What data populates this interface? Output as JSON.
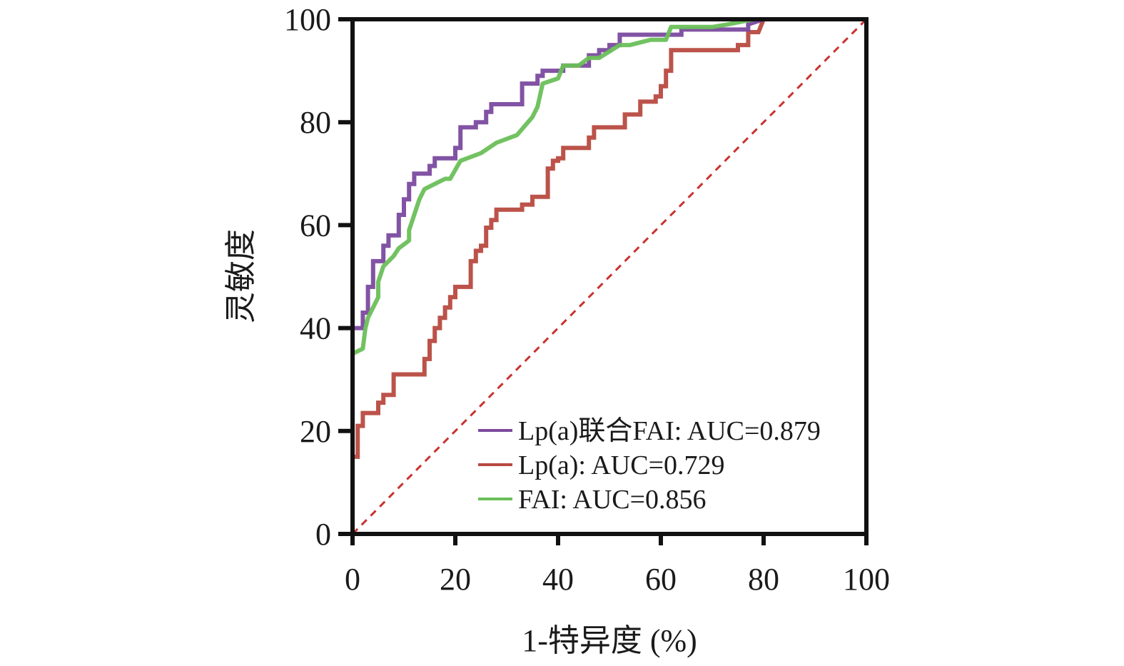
{
  "chart_data": {
    "type": "line",
    "title": "",
    "xlabel": "1-特异度 (%)",
    "ylabel": "灵敏度",
    "xlim": [
      0,
      100
    ],
    "ylim": [
      0,
      100
    ],
    "xticks": [
      0,
      20,
      40,
      60,
      80,
      100
    ],
    "yticks": [
      0,
      20,
      40,
      60,
      80,
      100
    ],
    "grid": false,
    "legend_position": "bottom-right",
    "series": [
      {
        "name": "Lp(a)联合FAI: AUC=0.879",
        "color": "#7b4a9f",
        "step": true,
        "points": [
          [
            0,
            35
          ],
          [
            0,
            40
          ],
          [
            2,
            40
          ],
          [
            2,
            43
          ],
          [
            3,
            43
          ],
          [
            3,
            48
          ],
          [
            4,
            48
          ],
          [
            4,
            53
          ],
          [
            6,
            53
          ],
          [
            6,
            56
          ],
          [
            7,
            56
          ],
          [
            7,
            58
          ],
          [
            9,
            58
          ],
          [
            9,
            62
          ],
          [
            10,
            62
          ],
          [
            10,
            65
          ],
          [
            11,
            65
          ],
          [
            11,
            68
          ],
          [
            12,
            68
          ],
          [
            12,
            70
          ],
          [
            15,
            70
          ],
          [
            15,
            71.5
          ],
          [
            16,
            71.5
          ],
          [
            16,
            73
          ],
          [
            20,
            73
          ],
          [
            20,
            75
          ],
          [
            21,
            75
          ],
          [
            21,
            79
          ],
          [
            24,
            79
          ],
          [
            24,
            80
          ],
          [
            26,
            80
          ],
          [
            26,
            82
          ],
          [
            27,
            82
          ],
          [
            27,
            83.5
          ],
          [
            33,
            83.5
          ],
          [
            33,
            87.5
          ],
          [
            36,
            87.5
          ],
          [
            36,
            89
          ],
          [
            37,
            89
          ],
          [
            37,
            90
          ],
          [
            41,
            90
          ],
          [
            41,
            91
          ],
          [
            46,
            91
          ],
          [
            46,
            93
          ],
          [
            48,
            93
          ],
          [
            48,
            94
          ],
          [
            50,
            94
          ],
          [
            50,
            95
          ],
          [
            52,
            95
          ],
          [
            52,
            97
          ],
          [
            64,
            97
          ],
          [
            64,
            98
          ],
          [
            77,
            98
          ],
          [
            77,
            99
          ],
          [
            80,
            100
          ],
          [
            100,
            100
          ]
        ]
      },
      {
        "name": "Lp(a): AUC=0.729",
        "color": "#b84a40",
        "step": true,
        "points": [
          [
            0,
            0
          ],
          [
            0,
            15
          ],
          [
            1,
            15
          ],
          [
            1,
            21
          ],
          [
            2,
            21
          ],
          [
            2,
            23.5
          ],
          [
            5,
            23.5
          ],
          [
            5,
            25.5
          ],
          [
            6,
            25.5
          ],
          [
            6,
            27
          ],
          [
            8,
            27
          ],
          [
            8,
            31
          ],
          [
            14,
            31
          ],
          [
            14,
            34
          ],
          [
            15,
            34
          ],
          [
            15,
            37.5
          ],
          [
            16,
            37.5
          ],
          [
            16,
            40
          ],
          [
            17,
            40
          ],
          [
            17,
            42
          ],
          [
            18,
            42
          ],
          [
            18,
            44
          ],
          [
            19,
            44
          ],
          [
            19,
            46
          ],
          [
            20,
            46
          ],
          [
            20,
            48
          ],
          [
            23,
            48
          ],
          [
            23,
            53
          ],
          [
            24,
            53
          ],
          [
            24,
            55
          ],
          [
            25,
            55
          ],
          [
            25,
            56
          ],
          [
            26,
            56
          ],
          [
            26,
            59.5
          ],
          [
            27,
            59.5
          ],
          [
            27,
            61
          ],
          [
            28,
            61
          ],
          [
            28,
            63
          ],
          [
            33,
            63
          ],
          [
            33,
            64
          ],
          [
            35,
            64
          ],
          [
            35,
            65.5
          ],
          [
            38,
            65.5
          ],
          [
            38,
            71
          ],
          [
            39,
            71
          ],
          [
            39,
            72.5
          ],
          [
            40,
            72.5
          ],
          [
            40,
            73
          ],
          [
            41,
            73
          ],
          [
            41,
            75
          ],
          [
            46,
            75
          ],
          [
            46,
            77
          ],
          [
            47,
            77
          ],
          [
            47,
            79
          ],
          [
            53,
            79
          ],
          [
            53,
            81.5
          ],
          [
            56,
            81.5
          ],
          [
            56,
            84
          ],
          [
            59,
            84
          ],
          [
            59,
            85
          ],
          [
            60,
            85
          ],
          [
            60,
            87
          ],
          [
            61,
            87
          ],
          [
            61,
            90
          ],
          [
            62,
            90
          ],
          [
            62,
            94
          ],
          [
            75,
            94
          ],
          [
            75,
            95
          ],
          [
            77,
            95
          ],
          [
            77,
            97.5
          ],
          [
            79,
            97.5
          ],
          [
            80,
            100
          ],
          [
            100,
            100
          ]
        ]
      },
      {
        "name": "FAI: AUC=0.856",
        "color": "#6abf5a",
        "step": false,
        "points": [
          [
            0,
            15
          ],
          [
            0,
            35
          ],
          [
            2,
            36
          ],
          [
            2.5,
            40
          ],
          [
            3,
            42
          ],
          [
            4,
            44
          ],
          [
            5,
            46
          ],
          [
            5,
            49
          ],
          [
            6,
            52
          ],
          [
            8,
            54
          ],
          [
            9,
            55.5
          ],
          [
            11,
            57
          ],
          [
            11,
            59
          ],
          [
            12,
            62
          ],
          [
            13,
            65
          ],
          [
            14,
            67
          ],
          [
            16,
            68
          ],
          [
            18,
            69
          ],
          [
            19,
            69
          ],
          [
            21,
            72.5
          ],
          [
            25,
            74
          ],
          [
            28,
            76
          ],
          [
            32,
            77.5
          ],
          [
            35,
            81
          ],
          [
            36,
            83
          ],
          [
            37,
            87.5
          ],
          [
            40,
            88.5
          ],
          [
            41,
            91
          ],
          [
            44,
            91
          ],
          [
            46,
            92.5
          ],
          [
            48,
            92.5
          ],
          [
            52,
            95
          ],
          [
            54,
            95
          ],
          [
            58,
            96
          ],
          [
            61,
            96
          ],
          [
            62,
            98.5
          ],
          [
            70,
            98.5
          ],
          [
            73,
            99
          ],
          [
            78,
            100
          ],
          [
            100,
            100
          ]
        ]
      }
    ],
    "reference_line": {
      "points": [
        [
          0,
          0
        ],
        [
          100,
          100
        ]
      ],
      "color": "#c8332f",
      "style": "dashed"
    }
  }
}
